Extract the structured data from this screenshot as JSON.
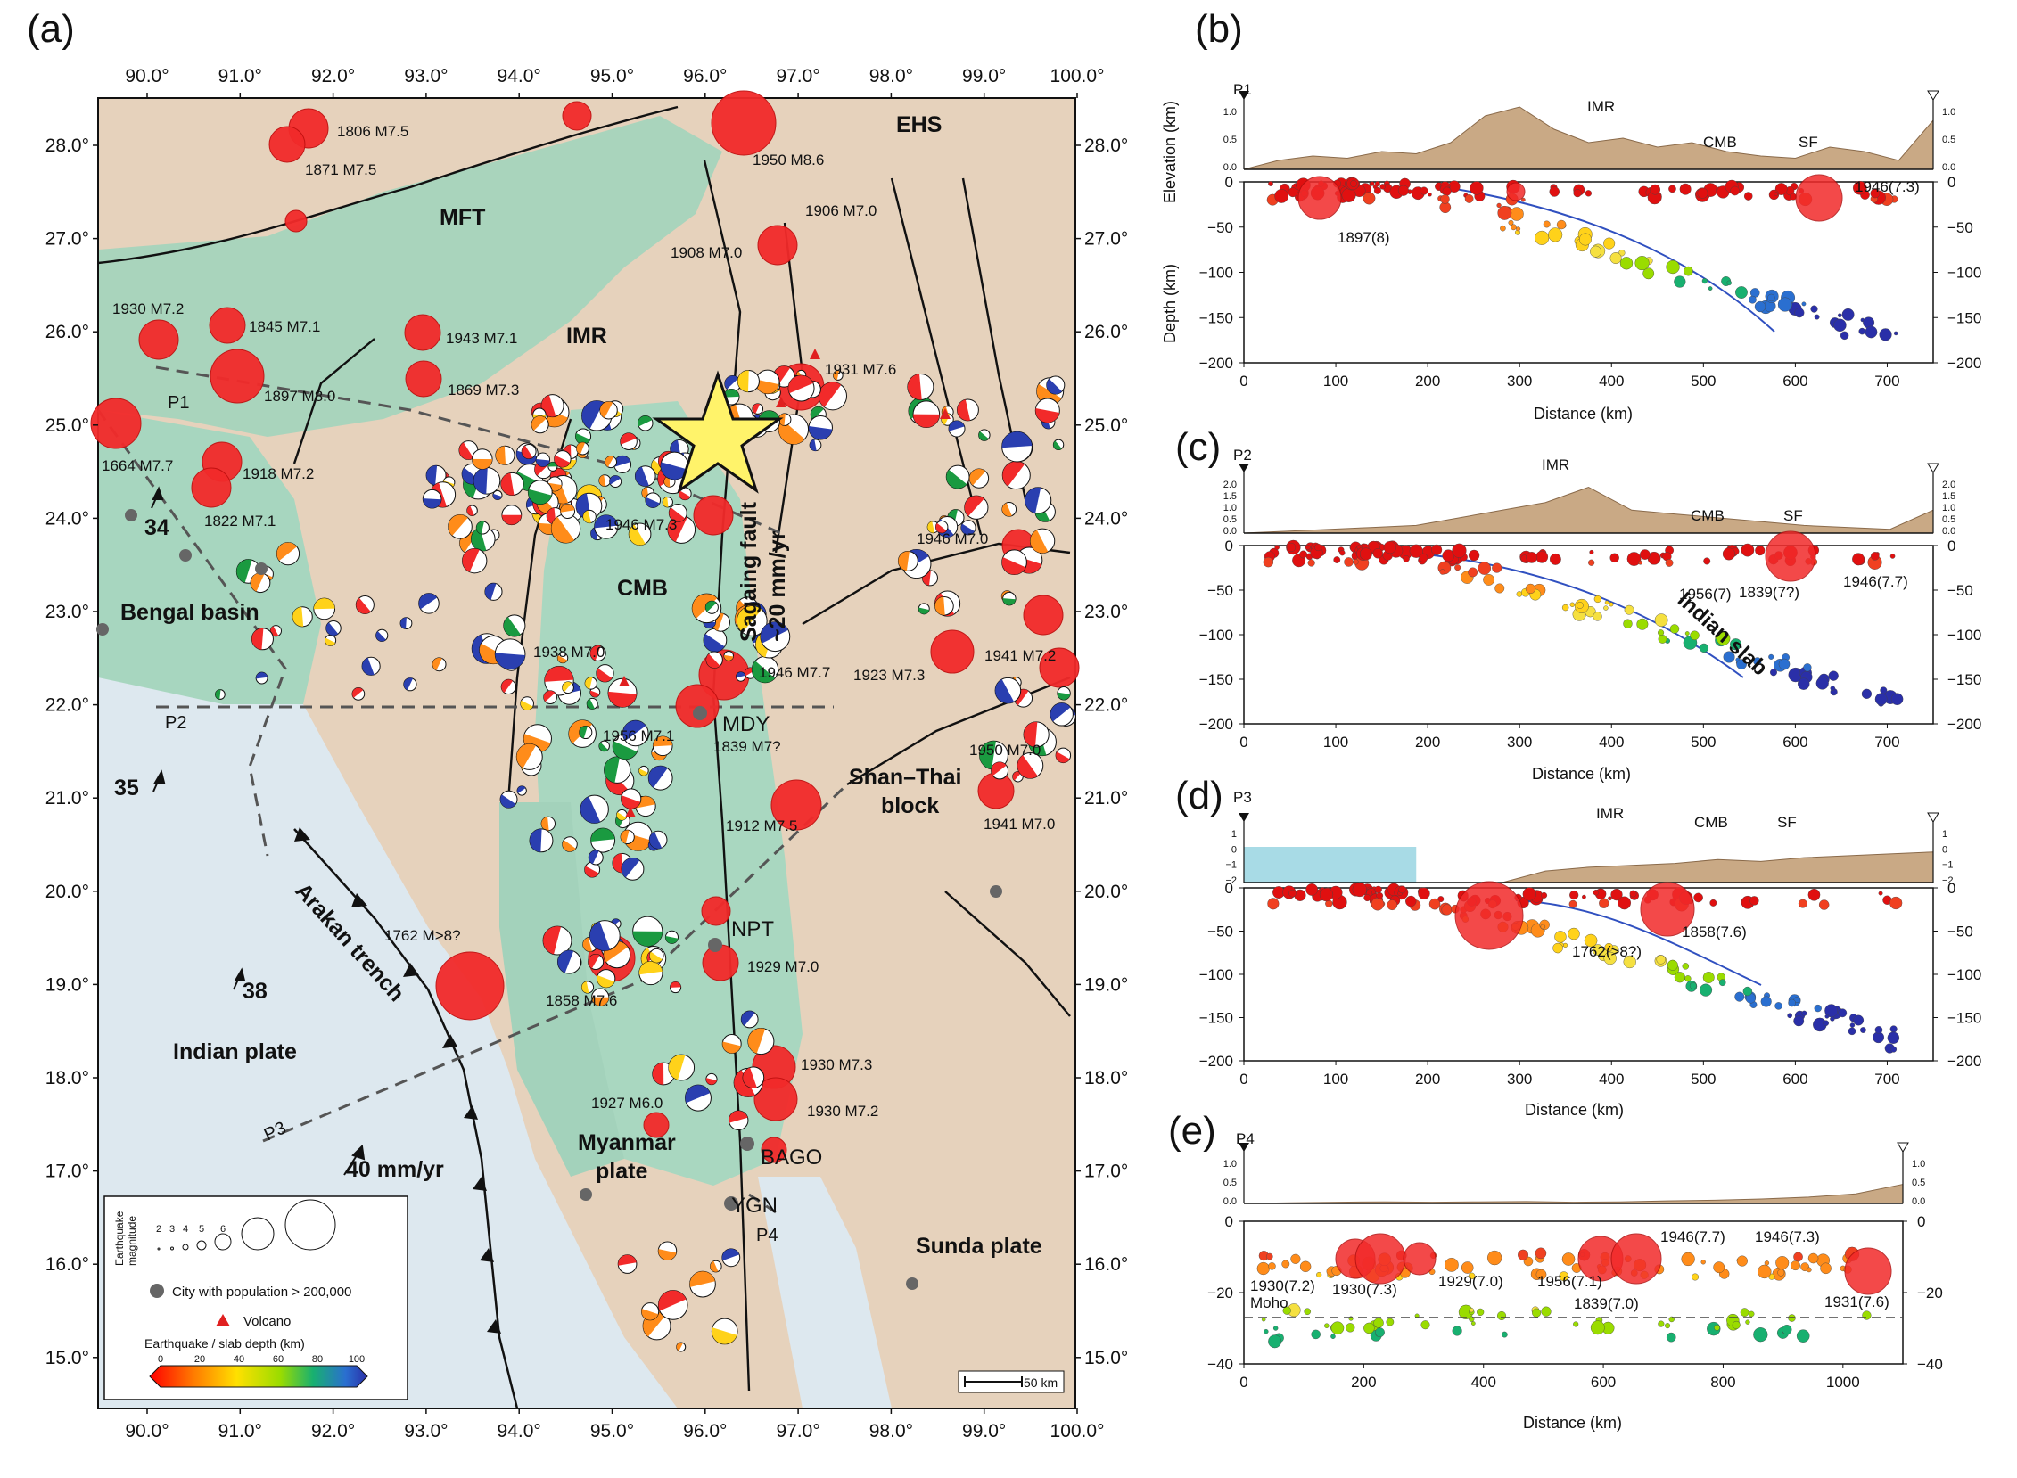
{
  "panels": {
    "a": "(a)",
    "b": "(b)",
    "c": "(c)",
    "d": "(d)",
    "e": "(e)"
  },
  "map": {
    "lon_ticks": [
      "90.0°",
      "91.0°",
      "92.0°",
      "93.0°",
      "94.0°",
      "95.0°",
      "96.0°",
      "97.0°",
      "98.0°",
      "99.0°",
      "100.0°"
    ],
    "lat_ticks": [
      "28.0°",
      "27.0°",
      "26.0°",
      "25.0°",
      "24.0°",
      "23.0°",
      "22.0°",
      "21.0°",
      "20.0°",
      "19.0°",
      "18.0°",
      "17.0°",
      "16.0°",
      "15.0°"
    ],
    "regions": {
      "ehs": "EHS",
      "mft": "MFT",
      "imr": "IMR",
      "cmb": "CMB",
      "bengal": "Bengal basin",
      "shan1": "Shan–Thai",
      "shan2": "block",
      "indian": "Indian plate",
      "myanmar1": "Myanmar",
      "myanmar2": "plate",
      "sunda": "Sunda plate",
      "arakan": "Arakan trench",
      "sagaing1": "Sagaing  fault",
      "sagaing2": "~20 mm/yr",
      "v34": "34",
      "v35": "35",
      "v38": "38",
      "v40": "40 mm/yr"
    },
    "cities": {
      "mdy": "MDY",
      "npt": "NPT",
      "bago": "BAGO",
      "ygn": "YGN"
    },
    "profiles": {
      "p1": "P1",
      "p2": "P2",
      "p3": "P3",
      "p4": "P4"
    },
    "events": {
      "e1806": "1806 M7.5",
      "e1871": "1871 M7.5",
      "e1950": "1950 M8.6",
      "e1906": "1906 M7.0",
      "e1908": "1908 M7.0",
      "e1930a": "1930 M7.2",
      "e1845": "1845 M7.1",
      "e1943": "1943 M7.1",
      "e1897": "1897 M8.0",
      "e1869": "1869 M7.3",
      "e1931": "1931 M7.6",
      "e1664": "1664 M7.7",
      "e1918": "1918 M7.2",
      "e1822": "1822 M7.1",
      "e1946a": "1946 M7.3",
      "e1946b": "1946 M7.0",
      "e1946c": "1946 M7.7",
      "e1923": "1923 M7.3",
      "e1941a": "1941 M7.2",
      "e1956": "1956 M7.1",
      "e1839": "1839 M7?",
      "e1950b": "1950 M7.0",
      "e1912": "1912 M7.5",
      "e1941b": "1941 M7.0",
      "e1762": "1762 M>8?",
      "e1858": "1858 M7.6",
      "e1929": "1929 M7.0",
      "e1930b": "1930 M7.3",
      "e1930c": "1930 M7.2",
      "e1927": "1927 M6.0",
      "e1938": "1938 M7.0"
    },
    "legend": {
      "mag_title_1": "Earthquake",
      "mag_title_2": "magnitude",
      "mags": [
        "2",
        "3",
        "4",
        "5",
        "6",
        "7",
        "8"
      ],
      "city": "City with population > 200,000",
      "volcano": "Volcano",
      "depth_title": "Earthquake / slab depth (km)",
      "depth_ticks": [
        "0",
        "20",
        "40",
        "60",
        "80",
        "100"
      ]
    },
    "scale_bar": "50 km"
  },
  "sections": {
    "b": {
      "point_left": "P1",
      "labels": {
        "imr": "IMR",
        "cmb": "CMB",
        "sf": "SF"
      },
      "events": {
        "e1946": "1946(7.3)",
        "e1897": "1897(8)"
      },
      "elev_title": "Elevation (km)",
      "depth_title": "Depth (km)",
      "x_title": "Distance (km)",
      "elev_ticks": [
        "1.0",
        "0.5",
        "0.0"
      ],
      "depth_ticks": [
        "0",
        "−50",
        "−100",
        "−150",
        "−200"
      ],
      "x_ticks": [
        "0",
        "100",
        "200",
        "300",
        "400",
        "500",
        "600",
        "700"
      ]
    },
    "c": {
      "point_left": "P2",
      "labels": {
        "imr": "IMR",
        "cmb": "CMB",
        "sf": "SF",
        "slab": "Indian slab"
      },
      "events": {
        "e1956": "1956(7)",
        "e1839": "1839(7?)",
        "e1946": "1946(7.7)"
      },
      "x_title": "Distance (km)",
      "elev_ticks": [
        "2.0",
        "1.5",
        "1.0",
        "0.5",
        "0.0"
      ],
      "depth_ticks": [
        "0",
        "−50",
        "−100",
        "−150",
        "−200"
      ],
      "x_ticks": [
        "0",
        "100",
        "200",
        "300",
        "400",
        "500",
        "600",
        "700"
      ]
    },
    "d": {
      "point_left": "P3",
      "labels": {
        "imr": "IMR",
        "cmb": "CMB",
        "sf": "SF"
      },
      "events": {
        "e1858": "1858(7.6)",
        "e1762": "1762(>8?)"
      },
      "x_title": "Distance (km)",
      "elev_ticks": [
        "1",
        "0",
        "−1",
        "−2"
      ],
      "depth_ticks": [
        "0",
        "−50",
        "−100",
        "−150",
        "−200"
      ],
      "x_ticks": [
        "0",
        "100",
        "200",
        "300",
        "400",
        "500",
        "600",
        "700"
      ]
    },
    "e": {
      "point_left": "P4",
      "labels": {
        "moho": "Moho"
      },
      "events": {
        "e1930a": "1930(7.2)",
        "e1930b": "1930(7.3)",
        "e1929": "1929(7.0)",
        "e1956": "1956(7.1)",
        "e1839": "1839(7.0)",
        "e1946a": "1946(7.7)",
        "e1946b": "1946(7.3)",
        "e1931": "1931(7.6)"
      },
      "x_title": "Distance (km)",
      "elev_ticks": [
        "1.0",
        "0.5",
        "0.0"
      ],
      "depth_ticks": [
        "0",
        "−20",
        "−40"
      ],
      "x_ticks": [
        "0",
        "200",
        "400",
        "600",
        "800",
        "1000"
      ]
    }
  },
  "colors": {
    "quake": "#f22a2a",
    "ocean": "#dfe9f0",
    "lowland": "#9ccfb6",
    "highland": "#e8d3bd",
    "slab": "#2a2fa8",
    "topo": "#c9a985"
  }
}
